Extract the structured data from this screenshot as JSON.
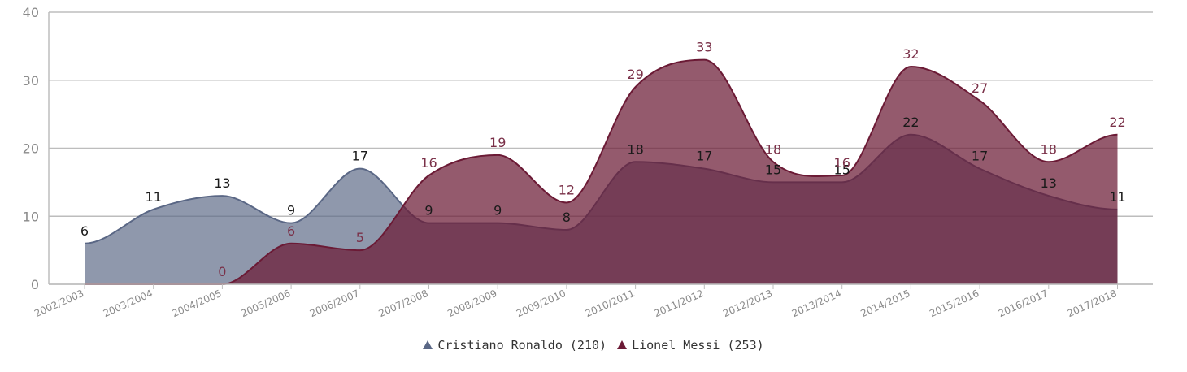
{
  "chart_data": {
    "type": "area",
    "categories": [
      "2002/2003",
      "2003/2004",
      "2004/2005",
      "2005/2006",
      "2006/2007",
      "2007/2008",
      "2008/2009",
      "2009/2010",
      "2010/2011",
      "2011/2012",
      "2012/2013",
      "2013/2014",
      "2014/2015",
      "2015/2016",
      "2016/2017",
      "2017/2018"
    ],
    "ylim": [
      0,
      40
    ],
    "yticks": [
      0,
      10,
      20,
      30,
      40
    ],
    "grid": true,
    "legend_position": "bottom",
    "series": [
      {
        "name": "Cristiano Ronaldo",
        "total": 210,
        "color": "#5a6785",
        "label_color": "#1a1a1a",
        "values": [
          6,
          11,
          13,
          9,
          17,
          9,
          9,
          8,
          18,
          17,
          15,
          15,
          22,
          17,
          13,
          11
        ]
      },
      {
        "name": "Lionel Messi",
        "total": 253,
        "color": "#6b1a35",
        "label_color": "#7a3048",
        "values": [
          0,
          0,
          0,
          6,
          5,
          16,
          19,
          12,
          29,
          33,
          18,
          16,
          32,
          27,
          18,
          22
        ]
      }
    ]
  },
  "legend": {
    "ronaldo_label": "Cristiano Ronaldo (210)",
    "messi_label": "Lionel Messi (253)"
  }
}
